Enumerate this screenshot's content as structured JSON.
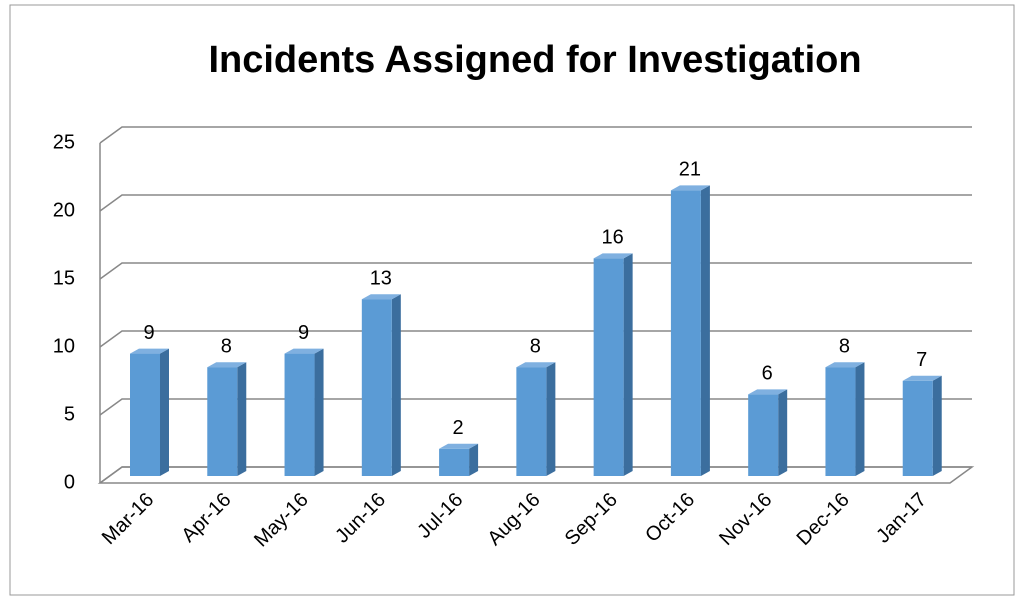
{
  "chart_data": {
    "type": "bar",
    "title": "Incidents Assigned for Investigation",
    "categories": [
      "Mar-16",
      "Apr-16",
      "May-16",
      "Jun-16",
      "Jul-16",
      "Aug-16",
      "Sep-16",
      "Oct-16",
      "Nov-16",
      "Dec-16",
      "Jan-17"
    ],
    "values": [
      9,
      8,
      9,
      13,
      2,
      8,
      16,
      21,
      6,
      8,
      7
    ],
    "color": "#5b9bd5",
    "ylim": [
      0,
      25
    ],
    "yticks": [
      0,
      5,
      10,
      15,
      20,
      25
    ],
    "grid": true,
    "data_labels": true
  }
}
